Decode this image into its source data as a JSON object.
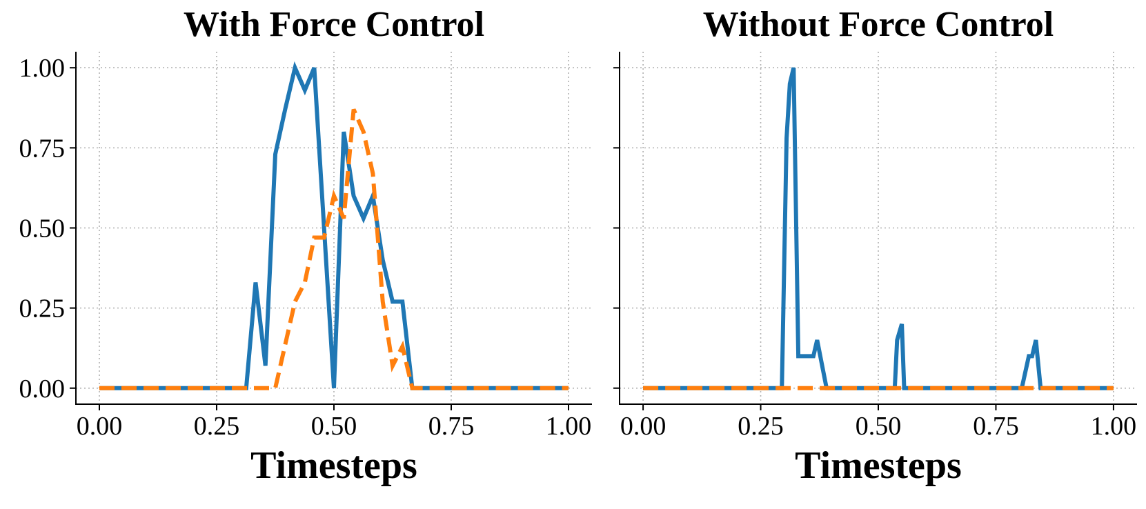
{
  "chart_data": [
    {
      "type": "line",
      "title": "With Force Control",
      "xlabel": "Timesteps",
      "ylabel": "",
      "xlim": [
        -0.05,
        1.05
      ],
      "ylim": [
        -0.05,
        1.05
      ],
      "xticks": [
        "0.00",
        "0.25",
        "0.50",
        "0.75",
        "1.00"
      ],
      "yticks": [
        "0.00",
        "0.25",
        "0.50",
        "0.75",
        "1.00"
      ],
      "grid": true,
      "series": [
        {
          "color": "#1f77b4",
          "dash": "solid",
          "x": [
            0.0,
            0.313,
            0.333,
            0.354,
            0.375,
            0.396,
            0.417,
            0.438,
            0.458,
            0.5,
            0.521,
            0.542,
            0.563,
            0.583,
            0.604,
            0.625,
            0.646,
            0.667,
            1.0
          ],
          "y": [
            0.0,
            0.0,
            0.33,
            0.07,
            0.73,
            0.87,
            1.0,
            0.93,
            1.0,
            0.0,
            0.8,
            0.6,
            0.53,
            0.6,
            0.4,
            0.27,
            0.27,
            0.0,
            0.0
          ]
        },
        {
          "color": "#ff7f0e",
          "dash": "dashed",
          "x": [
            0.0,
            0.375,
            0.417,
            0.438,
            0.458,
            0.479,
            0.5,
            0.521,
            0.542,
            0.563,
            0.583,
            0.604,
            0.625,
            0.646,
            0.667,
            1.0
          ],
          "y": [
            0.0,
            0.0,
            0.27,
            0.33,
            0.47,
            0.47,
            0.6,
            0.53,
            0.87,
            0.8,
            0.67,
            0.27,
            0.07,
            0.13,
            0.0,
            0.0
          ]
        }
      ]
    },
    {
      "type": "line",
      "title": "Without Force Control",
      "xlabel": "Timesteps",
      "ylabel": "",
      "xlim": [
        -0.05,
        1.05
      ],
      "ylim": [
        -0.05,
        1.05
      ],
      "xticks": [
        "0.00",
        "0.25",
        "0.50",
        "0.75",
        "1.00"
      ],
      "yticks": [],
      "grid": true,
      "series": [
        {
          "color": "#1f77b4",
          "dash": "solid",
          "x": [
            0.0,
            0.295,
            0.305,
            0.312,
            0.32,
            0.33,
            0.35,
            0.362,
            0.37,
            0.39,
            0.535,
            0.54,
            0.55,
            0.555,
            0.805,
            0.82,
            0.827,
            0.835,
            0.845,
            1.0
          ],
          "y": [
            0.0,
            0.0,
            0.78,
            0.95,
            1.0,
            0.1,
            0.1,
            0.1,
            0.15,
            0.0,
            0.0,
            0.15,
            0.2,
            0.0,
            0.0,
            0.1,
            0.1,
            0.15,
            0.0,
            0.0
          ]
        },
        {
          "color": "#ff7f0e",
          "dash": "dashed",
          "x": [
            0.0,
            1.0
          ],
          "y": [
            0.0,
            0.0
          ]
        }
      ]
    }
  ]
}
